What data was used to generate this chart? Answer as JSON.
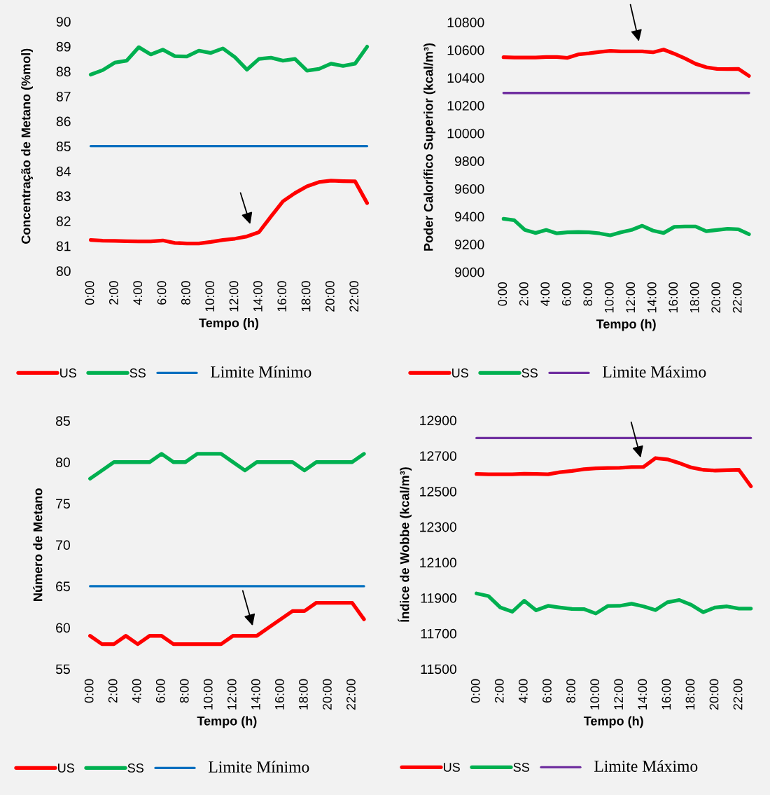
{
  "chart_data": [
    {
      "type": "line",
      "xlabel": "Tempo (h)",
      "ylabel": "Concentração de Metano (%mol)",
      "categories": [
        "0:00",
        null,
        "2:00",
        null,
        "4:00",
        null,
        "6:00",
        null,
        "8:00",
        null,
        "10:00",
        null,
        "12:00",
        null,
        "14:00",
        null,
        "16:00",
        null,
        "18:00",
        null,
        "20:00",
        null,
        "22:00",
        null
      ],
      "series": [
        {
          "name": "US",
          "color": "#ff0000",
          "values": [
            81.24,
            81.21,
            81.2,
            81.19,
            81.18,
            81.18,
            81.22,
            81.12,
            81.1,
            81.1,
            81.16,
            81.24,
            81.29,
            81.38,
            81.55,
            82.18,
            82.79,
            83.12,
            83.39,
            83.56,
            83.62,
            83.6,
            83.59,
            82.72
          ]
        },
        {
          "name": "SS",
          "color": "#00b050",
          "values": [
            87.87,
            88.05,
            88.35,
            88.43,
            88.97,
            88.68,
            88.87,
            88.61,
            88.6,
            88.83,
            88.74,
            88.92,
            88.57,
            88.07,
            88.5,
            88.55,
            88.43,
            88.5,
            88.03,
            88.1,
            88.31,
            88.22,
            88.31,
            88.99
          ]
        }
      ],
      "ref_lines": [
        {
          "axis": "y",
          "value": 85,
          "label": "Limite Mínimo",
          "color": "#0070c0"
        }
      ],
      "ylim": [
        80,
        90
      ],
      "yticks": [
        80,
        81,
        82,
        83,
        84,
        85,
        86,
        87,
        88,
        89,
        90
      ],
      "legend": "bottom"
    },
    {
      "type": "line",
      "xlabel": "Tempo (h)",
      "ylabel": "Poder Calorífico Superior (kcal/m³)",
      "categories": [
        "0:00",
        null,
        "2:00",
        null,
        "4:00",
        null,
        "6:00",
        null,
        "8:00",
        null,
        "10:00",
        null,
        "12:00",
        null,
        "14:00",
        null,
        "16:00",
        null,
        "18:00",
        null,
        "20:00",
        null,
        "22:00",
        null
      ],
      "series": [
        {
          "name": "US",
          "color": "#ff0000",
          "values": [
            10548,
            10546,
            10546,
            10546,
            10549,
            10549,
            10543,
            10568,
            10576,
            10586,
            10593,
            10590,
            10590,
            10590,
            10583,
            10603,
            10573,
            10539,
            10500,
            10475,
            10464,
            10462,
            10464,
            10413
          ]
        },
        {
          "name": "SS",
          "color": "#00b050",
          "values": [
            9383,
            9373,
            9303,
            9281,
            9303,
            9278,
            9286,
            9288,
            9286,
            9278,
            9264,
            9286,
            9303,
            9333,
            9298,
            9281,
            9325,
            9328,
            9328,
            9294,
            9303,
            9311,
            9308,
            9272
          ]
        }
      ],
      "ref_lines": [
        {
          "axis": "y",
          "value": 10290,
          "label": "Limite Máximo",
          "color": "#7030a0"
        }
      ],
      "ylim": [
        9000,
        10800
      ],
      "yticks": [
        9000,
        9200,
        9400,
        9600,
        9800,
        10000,
        10200,
        10400,
        10600,
        10800
      ],
      "legend": "bottom"
    },
    {
      "type": "line",
      "xlabel": "Tempo (h)",
      "ylabel": "Número de Metano",
      "categories": [
        "0:00",
        null,
        "2:00",
        null,
        "4:00",
        null,
        "6:00",
        null,
        "8:00",
        null,
        "10:00",
        null,
        "12:00",
        null,
        "14:00",
        null,
        "16:00",
        null,
        "18:00",
        null,
        "20:00",
        null,
        "22:00",
        null
      ],
      "series": [
        {
          "name": "US",
          "color": "#ff0000",
          "values": [
            59,
            58,
            58,
            59,
            58,
            59,
            59,
            58,
            58,
            58,
            58,
            58,
            59,
            59,
            59,
            60,
            61,
            62,
            62,
            63,
            63,
            63,
            63,
            61
          ]
        },
        {
          "name": "SS",
          "color": "#00b050",
          "values": [
            78,
            79,
            80,
            80,
            80,
            80,
            81,
            80,
            80,
            81,
            81,
            81,
            80,
            79,
            80,
            80,
            80,
            80,
            79,
            80,
            80,
            80,
            80,
            81
          ]
        }
      ],
      "ref_lines": [
        {
          "axis": "y",
          "value": 65,
          "label": "Limite Mínimo",
          "color": "#0070c0"
        }
      ],
      "ylim": [
        55,
        85
      ],
      "yticks": [
        55,
        60,
        65,
        70,
        75,
        80,
        85
      ],
      "legend": "bottom"
    },
    {
      "type": "line",
      "xlabel": "Tempo (h)",
      "ylabel": "Índice de Wobbe (kcal/m³)",
      "categories": [
        "0:00",
        null,
        "2:00",
        null,
        "4:00",
        null,
        "6:00",
        null,
        "8:00",
        null,
        "10:00",
        null,
        "12:00",
        null,
        "14:00",
        null,
        "16:00",
        null,
        "18:00",
        null,
        "20:00",
        null,
        "22:00",
        null
      ],
      "series": [
        {
          "name": "US",
          "color": "#ff0000",
          "values": [
            12598,
            12596,
            12596,
            12596,
            12599,
            12598,
            12596,
            12608,
            12615,
            12624,
            12629,
            12631,
            12632,
            12636,
            12637,
            12687,
            12680,
            12659,
            12634,
            12621,
            12617,
            12619,
            12621,
            12528
          ]
        },
        {
          "name": "SS",
          "color": "#00b050",
          "values": [
            11925,
            11910,
            11846,
            11822,
            11884,
            11830,
            11855,
            11846,
            11838,
            11837,
            11812,
            11854,
            11855,
            11867,
            11852,
            11831,
            11875,
            11888,
            11861,
            11819,
            11846,
            11852,
            11840,
            11840
          ]
        }
      ],
      "ref_lines": [
        {
          "axis": "y",
          "value": 12800,
          "label": "Limite Máximo",
          "color": "#7030a0"
        }
      ],
      "ylim": [
        11500,
        12900
      ],
      "yticks": [
        11500,
        11700,
        11900,
        12100,
        12300,
        12500,
        12700,
        12900
      ],
      "legend": "bottom"
    }
  ]
}
